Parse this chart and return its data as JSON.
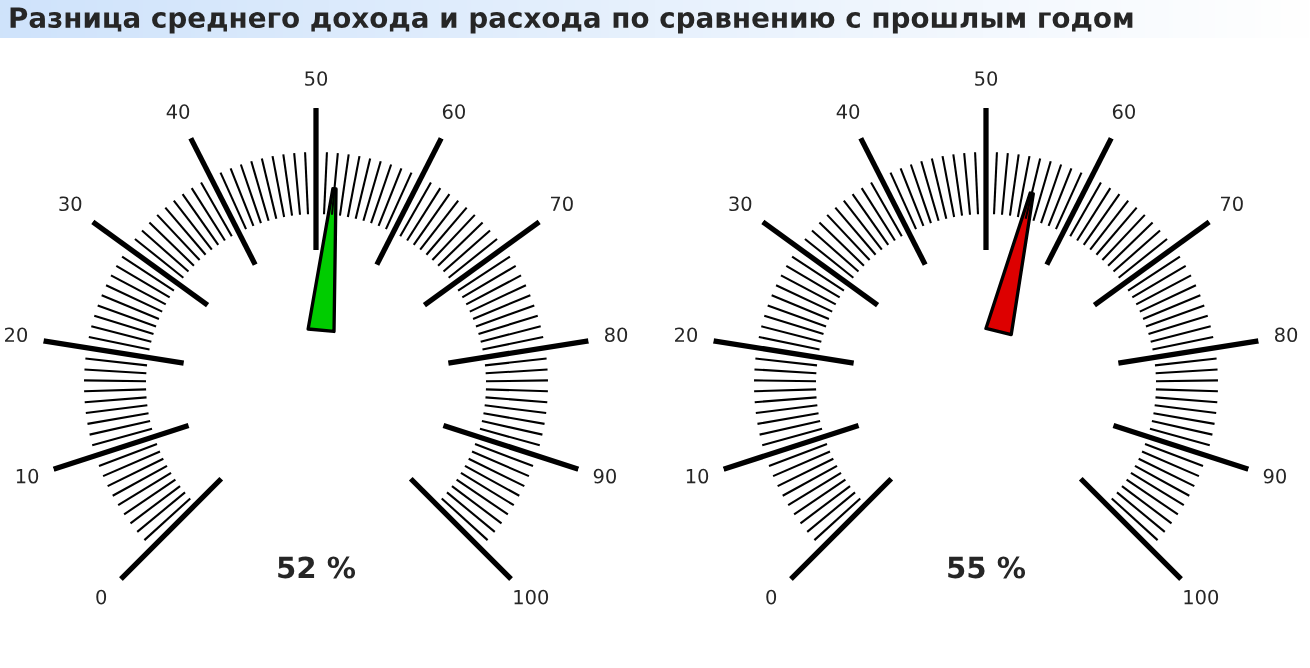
{
  "chart_data": [
    {
      "type": "other",
      "title": "Разница среднего дохода и расхода по сравнению с прошлым годом",
      "values": [
        52
      ],
      "value_labels": [
        "52 %"
      ],
      "colors": [
        "#00cc00"
      ],
      "annotations": [
        "0",
        "10",
        "20",
        "30",
        "40",
        "50",
        "60",
        "70",
        "80",
        "90",
        "100"
      ]
    },
    {
      "type": "other",
      "values": [
        55
      ],
      "value_labels": [
        "55 %"
      ],
      "colors": [
        "#dd0000"
      ],
      "annotations": [
        "0",
        "10",
        "20",
        "30",
        "40",
        "50",
        "60",
        "70",
        "80",
        "90",
        "100"
      ]
    }
  ]
}
